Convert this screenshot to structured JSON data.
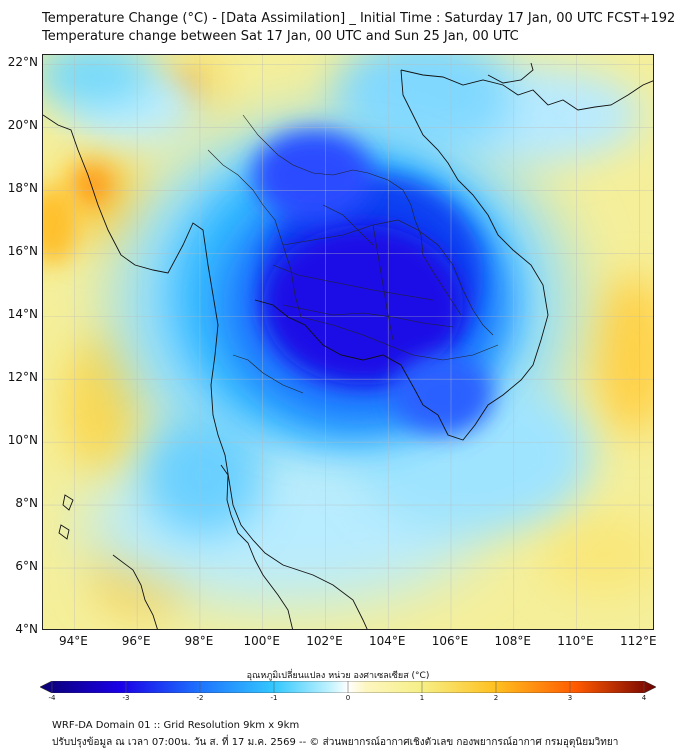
{
  "header": {
    "title_line1": "Temperature Change (°C) - [Data Assimilation] _ Initial Time : Saturday 17 Jan, 00 UTC FCST+192",
    "title_line2": "Temperature change between Sat 17 Jan, 00 UTC and Sun 25 Jan, 00 UTC"
  },
  "map": {
    "latitude_labels": [
      "22°N",
      "20°N",
      "18°N",
      "16°N",
      "14°N",
      "12°N",
      "10°N",
      "8°N",
      "6°N",
      "4°N"
    ],
    "longitude_labels": [
      "94°E",
      "96°E",
      "98°E",
      "100°E",
      "102°E",
      "104°E",
      "106°E",
      "108°E",
      "110°E",
      "112°E"
    ],
    "lat_values": [
      22,
      20,
      18,
      16,
      14,
      12,
      10,
      8,
      6,
      4
    ],
    "lon_values": [
      94,
      96,
      98,
      100,
      102,
      104,
      106,
      108,
      110,
      112
    ],
    "lat_range": [
      4,
      22.3
    ],
    "lon_range": [
      93,
      112.5
    ]
  },
  "colorbar": {
    "title": "อุณหภูมิเปลี่ยนแปลง หน่วย องศาเซลเซียส (°C)",
    "tick_labels": [
      "-4",
      "-3",
      "-2",
      "-1",
      "0",
      "1",
      "2",
      "3",
      "4"
    ],
    "tick_values": [
      -4,
      -3,
      -2,
      -1,
      0,
      1,
      2,
      3,
      4
    ],
    "range": [
      -4,
      4
    ]
  },
  "footer": {
    "line1": "WRF-DA Domain 01 :: Grid Resolution 9km x 9km",
    "line2": "ปรับปรุงข้อมูล ณ เวลา 07:00น. วัน ส. ที่ 17 ม.ค. 2569 -- © ส่วนพยากรณ์อากาศเชิงตัวเลข กองพยากรณ์อากาศ กรมอุตุนิยมวิทยา"
  },
  "colors": {
    "deep_blue": "#1a00e6",
    "blue": "#2255ff",
    "light_blue": "#33c8ff",
    "pale_cyan": "#a8ecff",
    "yellow": "#f6ef86",
    "orange": "#ffb400",
    "red": "#dc2000"
  }
}
